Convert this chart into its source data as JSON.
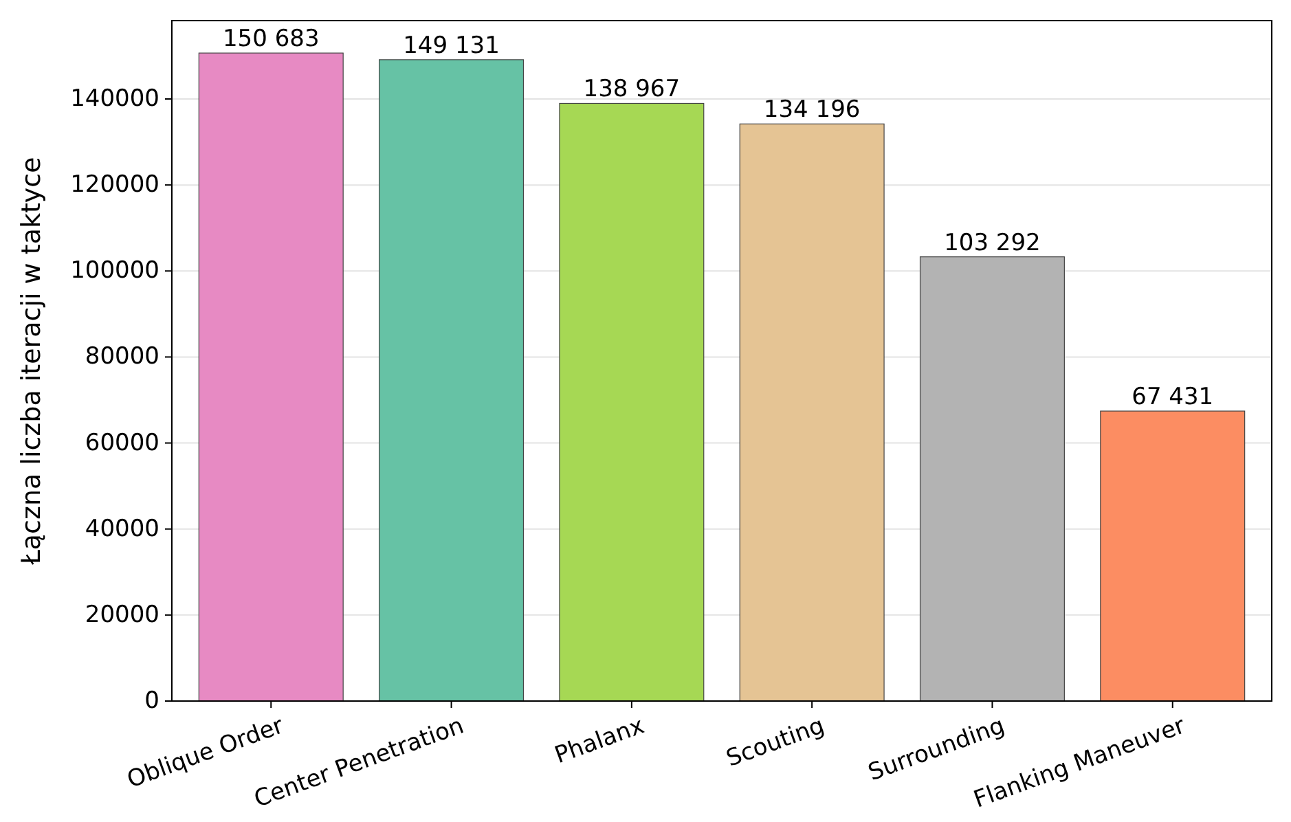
{
  "chart_data": {
    "type": "bar",
    "ylabel": "Łączna liczba iteracji w taktyce",
    "categories": [
      "Oblique Order",
      "Center Penetration",
      "Phalanx",
      "Scouting",
      "Surrounding",
      "Flanking Maneuver"
    ],
    "values": [
      150683,
      149131,
      138967,
      134196,
      103292,
      67431
    ],
    "value_labels": [
      "150 683",
      "149 131",
      "138 967",
      "134 196",
      "103 292",
      "67 431"
    ],
    "colors": [
      "#e78ac3",
      "#66c2a5",
      "#a6d854",
      "#e5c494",
      "#b3b3b3",
      "#fc8d62"
    ],
    "ylim": [
      0,
      158217
    ],
    "yticks": [
      0,
      20000,
      40000,
      60000,
      80000,
      100000,
      120000,
      140000
    ],
    "grid": "y"
  }
}
